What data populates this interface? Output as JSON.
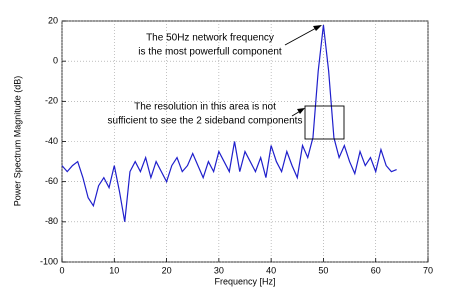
{
  "chart_data": {
    "type": "line",
    "x_label": "Frequency [Hz]",
    "y_label": "Power Spectrum Magnitude (dB)",
    "annotations": [
      "The 50Hz network frequency",
      "is the most powerfull component",
      "The resolution in this area is not",
      "sufficient to see the 2 sideband components"
    ],
    "x": [
      0,
      1,
      2,
      3,
      4,
      5,
      6,
      7,
      8,
      9,
      10,
      11,
      12,
      13,
      14,
      15,
      16,
      17,
      18,
      19,
      20,
      21,
      22,
      23,
      24,
      25,
      26,
      27,
      28,
      29,
      30,
      31,
      32,
      33,
      34,
      35,
      36,
      37,
      38,
      39,
      40,
      41,
      42,
      43,
      44,
      45,
      46,
      47,
      48,
      49,
      50,
      51,
      52,
      53,
      54,
      55,
      56,
      57,
      58,
      59,
      60,
      61,
      62,
      63,
      64
    ],
    "series": [
      {
        "color": "#1f1fcc",
        "values": [
          -52,
          -55,
          -52,
          -50,
          -58,
          -68,
          -72,
          -62,
          -58,
          -63,
          -52,
          -65,
          -80,
          -55,
          -50,
          -55,
          -48,
          -58,
          -50,
          -55,
          -60,
          -52,
          -48,
          -55,
          -52,
          -46,
          -52,
          -58,
          -50,
          -55,
          -45,
          -50,
          -55,
          -40,
          -55,
          -45,
          -50,
          -55,
          -48,
          -58,
          -42,
          -50,
          -55,
          -45,
          -52,
          -58,
          -42,
          -48,
          -38,
          -5,
          18,
          -5,
          -38,
          -48,
          -42,
          -50,
          -56,
          -45,
          -52,
          -48,
          -55,
          -44,
          -52,
          -55,
          -54
        ]
      }
    ],
    "xlim": [
      0,
      70
    ],
    "xticks": [
      0,
      10,
      20,
      30,
      40,
      50,
      60,
      70
    ],
    "ylim": [
      -100,
      20
    ],
    "yticks": [
      -100,
      -80,
      -60,
      -40,
      -20,
      0,
      20
    ],
    "grid": true
  }
}
